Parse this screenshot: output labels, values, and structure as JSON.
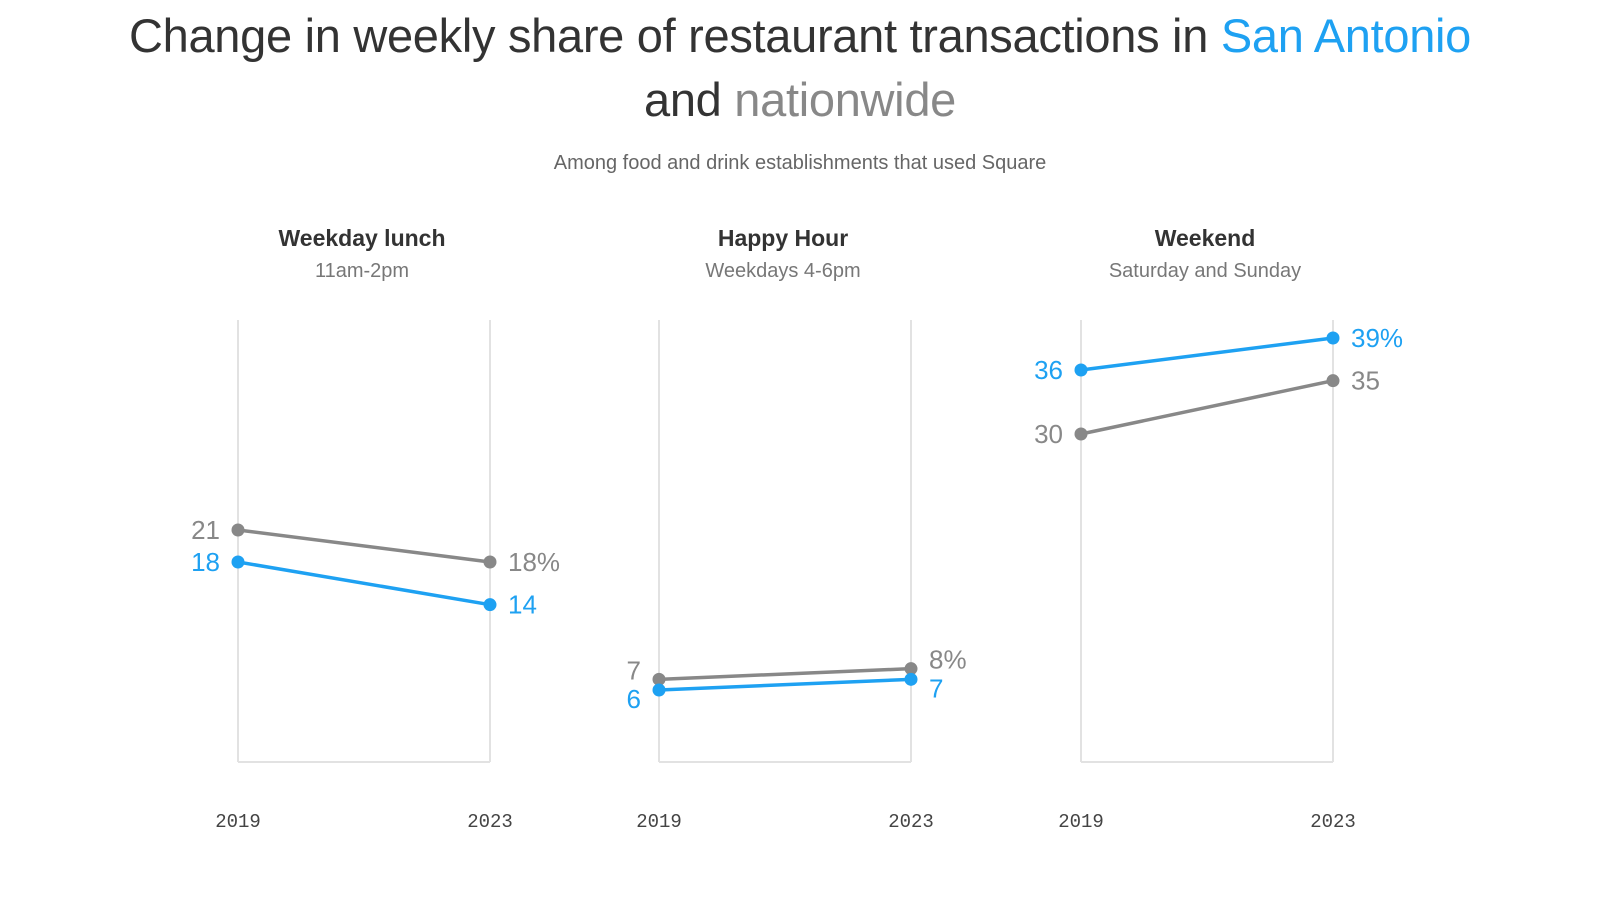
{
  "title": {
    "prefix": "Change in weekly share of restaurant transactions in ",
    "highlight_city": "San Antonio",
    "middle": "and",
    "highlight_nation": "nationwide"
  },
  "subtitle": "Among food and drink establishments that used Square",
  "colors": {
    "san_antonio": "#1ea1f2",
    "nationwide": "#888888",
    "axis": "#e2e2e2",
    "title": "#333333"
  },
  "chart_data": [
    {
      "type": "line",
      "title": "Weekday lunch",
      "subtitle": "11am-2pm",
      "x": [
        "2019",
        "2023"
      ],
      "ylim": [
        0,
        40
      ],
      "series": [
        {
          "name": "Nationwide",
          "values": [
            21,
            18
          ],
          "labels": [
            "21",
            "18%"
          ]
        },
        {
          "name": "San Antonio",
          "values": [
            18,
            14
          ],
          "labels": [
            "18",
            "14"
          ]
        }
      ]
    },
    {
      "type": "line",
      "title": "Happy Hour",
      "subtitle": "Weekdays 4-6pm",
      "x": [
        "2019",
        "2023"
      ],
      "ylim": [
        0,
        40
      ],
      "series": [
        {
          "name": "Nationwide",
          "values": [
            7,
            8
          ],
          "labels": [
            "7",
            "8%"
          ]
        },
        {
          "name": "San Antonio",
          "values": [
            6,
            7
          ],
          "labels": [
            "6",
            "7"
          ]
        }
      ]
    },
    {
      "type": "line",
      "title": "Weekend",
      "subtitle": "Saturday and Sunday",
      "x": [
        "2019",
        "2023"
      ],
      "ylim": [
        0,
        40
      ],
      "series": [
        {
          "name": "Nationwide",
          "values": [
            30,
            35
          ],
          "labels": [
            "30",
            "35"
          ]
        },
        {
          "name": "San Antonio",
          "values": [
            36,
            39
          ],
          "labels": [
            "36",
            "39%"
          ]
        }
      ]
    }
  ]
}
